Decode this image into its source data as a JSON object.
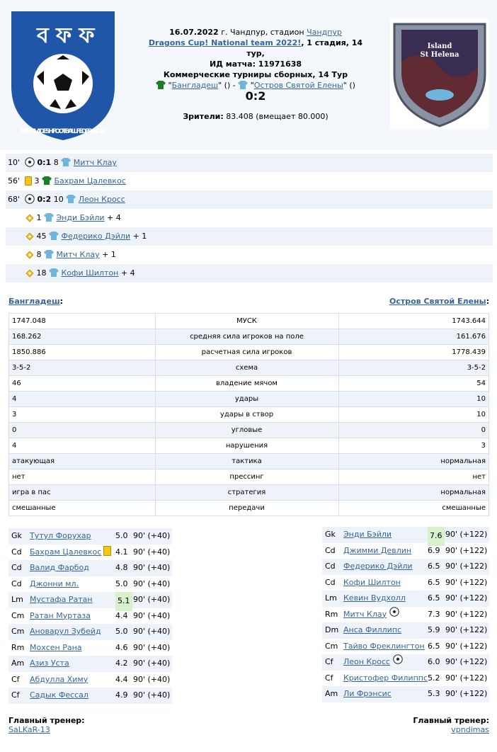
{
  "match": {
    "date_prefix": "16.07.2022",
    "city_text": "г. Чандпур, стадион",
    "stadium": "Чандпур",
    "tournament": "Dragons Cup! National team 2022!",
    "stage": ", 1 стадия, 14 тур,",
    "match_id": "ИД матча: 11971638",
    "competition": "Коммерческие турниры сборных, 14 Тур",
    "home_team": "Бангладеш",
    "away_team": "Остров Святой Елены",
    "home_suffix": "()",
    "sep": " - ",
    "away_suffix": "()",
    "score": "0:2",
    "crowd_label": "Зрители:",
    "crowd_value": "83.408 (вмещает 80.000)"
  },
  "colors": {
    "home_shirt": "#1b7f2a",
    "away_shirt": "#6fb6df",
    "link": "#33669c",
    "highlight": "#d8f0cc"
  },
  "events": [
    {
      "min": "10'",
      "type": "goal",
      "score": "0:1",
      "num": "8",
      "player": "Митч Клау",
      "team": "away",
      "extra": ""
    },
    {
      "min": "56'",
      "type": "yellow",
      "score": "",
      "num": "3",
      "player": "Бахрам Цалевкос",
      "team": "home",
      "extra": ""
    },
    {
      "min": "68'",
      "type": "goal",
      "score": "0:2",
      "num": "10",
      "player": "Леон Кросс",
      "team": "away",
      "extra": ""
    },
    {
      "min": "",
      "type": "assist",
      "score": "",
      "num": "1",
      "player": "Энди Бэйли",
      "team": "away",
      "extra": "+ 4"
    },
    {
      "min": "",
      "type": "assist",
      "score": "",
      "num": "45",
      "player": "Федерико Дэйли",
      "team": "away",
      "extra": "+ 1"
    },
    {
      "min": "",
      "type": "assist",
      "score": "",
      "num": "8",
      "player": "Митч Клау",
      "team": "away",
      "extra": "+ 1"
    },
    {
      "min": "",
      "type": "assist",
      "score": "",
      "num": "18",
      "player": "Кофи Шилтон",
      "team": "away",
      "extra": "+ 4"
    }
  ],
  "teams_header": {
    "home": "Бангладеш",
    "away": "Остров Святой Елены",
    "colon": ":"
  },
  "stats": [
    {
      "home": "1747.048",
      "label": "МУСК",
      "away": "1743.644"
    },
    {
      "home": "168.262",
      "label": "средняя сила игроков на поле",
      "away": "161.676"
    },
    {
      "home": "1850.886",
      "label": "расчетная сила игроков",
      "away": "1778.439"
    },
    {
      "home": "3-5-2",
      "label": "схема",
      "away": "3-5-2"
    },
    {
      "home": "46",
      "label": "владение мячом",
      "away": "54"
    },
    {
      "home": "4",
      "label": "удары",
      "away": "10"
    },
    {
      "home": "3",
      "label": "удары в створ",
      "away": "10"
    },
    {
      "home": "0",
      "label": "угловые",
      "away": "0"
    },
    {
      "home": "4",
      "label": "нарушения",
      "away": "3"
    },
    {
      "home": "атакующая",
      "label": "тактика",
      "away": "нормальная"
    },
    {
      "home": "нет",
      "label": "прессинг",
      "away": "нет"
    },
    {
      "home": "игра в пас",
      "label": "стратегия",
      "away": "нормальная"
    },
    {
      "home": "смешанные",
      "label": "передачи",
      "away": "смешанные"
    }
  ],
  "home_lineup": [
    {
      "pos": "Gk",
      "name": "Тутул Форухар",
      "rating": "5.0",
      "mins": "90' (+40)",
      "card": false,
      "goal": false,
      "hi": false
    },
    {
      "pos": "Cd",
      "name": "Бахрам Цалевкос",
      "rating": "4.1",
      "mins": "90' (+40)",
      "card": true,
      "goal": false,
      "hi": false
    },
    {
      "pos": "Cd",
      "name": "Валид Фарбод",
      "rating": "4.8",
      "mins": "90' (+40)",
      "card": false,
      "goal": false,
      "hi": false
    },
    {
      "pos": "Cd",
      "name": "Джонни мл.",
      "rating": "5.0",
      "mins": "90' (+40)",
      "card": false,
      "goal": false,
      "hi": false
    },
    {
      "pos": "Lm",
      "name": "Мустафа Ратан",
      "rating": "5.1",
      "mins": "90' (+40)",
      "card": false,
      "goal": false,
      "hi": true
    },
    {
      "pos": "Cm",
      "name": "Ратан Муртаза",
      "rating": "4.4",
      "mins": "90' (+40)",
      "card": false,
      "goal": false,
      "hi": false
    },
    {
      "pos": "Cm",
      "name": "Ановарул Зубейд",
      "rating": "5.0",
      "mins": "90' (+40)",
      "card": false,
      "goal": false,
      "hi": false
    },
    {
      "pos": "Rm",
      "name": "Мохсен Рана",
      "rating": "4.6",
      "mins": "90' (+40)",
      "card": false,
      "goal": false,
      "hi": false
    },
    {
      "pos": "Am",
      "name": "Азиз Уста",
      "rating": "4.2",
      "mins": "90' (+40)",
      "card": false,
      "goal": false,
      "hi": false
    },
    {
      "pos": "Cf",
      "name": "Абдулла Химу",
      "rating": "4.4",
      "mins": "90' (+40)",
      "card": false,
      "goal": false,
      "hi": false
    },
    {
      "pos": "Cf",
      "name": "Садык Фессал",
      "rating": "4.9",
      "mins": "90' (+40)",
      "card": false,
      "goal": false,
      "hi": false
    }
  ],
  "away_lineup": [
    {
      "pos": "Gk",
      "name": "Энди Бэйли",
      "rating": "7.6",
      "mins": "90' (+122)",
      "card": false,
      "goal": false,
      "hi": true
    },
    {
      "pos": "Cd",
      "name": "Джимми Девлин",
      "rating": "6.9",
      "mins": "90' (+122)",
      "card": false,
      "goal": false,
      "hi": false
    },
    {
      "pos": "Cd",
      "name": "Федерико Дэйли",
      "rating": "6.5",
      "mins": "90' (+122)",
      "card": false,
      "goal": false,
      "hi": false
    },
    {
      "pos": "Cd",
      "name": "Кофи Шилтон",
      "rating": "6.5",
      "mins": "90' (+122)",
      "card": false,
      "goal": false,
      "hi": false
    },
    {
      "pos": "Lm",
      "name": "Кевин Вудхолл",
      "rating": "6.5",
      "mins": "90' (+122)",
      "card": false,
      "goal": false,
      "hi": false
    },
    {
      "pos": "Rm",
      "name": "Митч Клау",
      "rating": "7.3",
      "mins": "90' (+122)",
      "card": false,
      "goal": true,
      "hi": false
    },
    {
      "pos": "Dm",
      "name": "Анса Филлипс",
      "rating": "5.9",
      "mins": "90' (+122)",
      "card": false,
      "goal": false,
      "hi": false
    },
    {
      "pos": "Cm",
      "name": "Тайво Фреклингтон",
      "rating": "6.5",
      "mins": "90' (+122)",
      "card": false,
      "goal": false,
      "hi": false
    },
    {
      "pos": "Cf",
      "name": "Леон Кросс",
      "rating": "6.0",
      "mins": "90' (+122)",
      "card": false,
      "goal": true,
      "hi": false
    },
    {
      "pos": "Cf",
      "name": "Кристофер Филиппс",
      "rating": "5.2",
      "mins": "90' (+122)",
      "card": false,
      "goal": false,
      "hi": false
    },
    {
      "pos": "Am",
      "name": "Ли Фрэнсис",
      "rating": "5.3",
      "mins": "90' (+122)",
      "card": false,
      "goal": false,
      "hi": false
    }
  ],
  "coaches": {
    "label": "Главный тренер:",
    "home": "SaLKaR-13",
    "away": "vpndimas"
  },
  "logos": {
    "home_lines": [
      "BANGLADESH FOOTBALL FEDERATION"
    ],
    "away_lines": [
      "Island",
      "St Helena"
    ]
  }
}
